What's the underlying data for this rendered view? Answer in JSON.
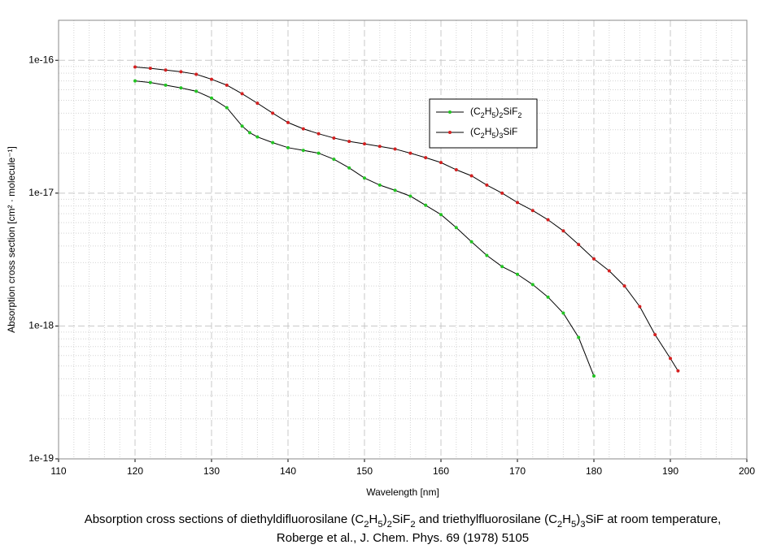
{
  "chart_data": {
    "type": "line",
    "x_label": "Wavelength [nm]",
    "y_label": "Absorption cross section [cm² · molecule⁻¹]",
    "caption_lines": [
      "Absorption cross sections of diethyldifluorosilane (C2H5)2SiF2 and triethylfluorosilane (C2H5)3SiF at room temperature,",
      "Roberge et al., J. Chem. Phys. 69 (1978) 5105"
    ],
    "xlim": [
      110,
      200
    ],
    "xticks": [
      110,
      120,
      130,
      140,
      150,
      160,
      170,
      180,
      190,
      200
    ],
    "ylim": [
      1e-19,
      2e-16
    ],
    "yticks": [
      1e-19,
      1e-18,
      1e-17,
      1e-16
    ],
    "y_scale": "log",
    "grid": true,
    "series": [
      {
        "name": "(C2H5)2SiF2",
        "color": "#22c422",
        "x": [
          120,
          122,
          124,
          126,
          128,
          130,
          132,
          134,
          135,
          136,
          138,
          140,
          142,
          144,
          146,
          148,
          150,
          152,
          154,
          156,
          158,
          160,
          162,
          164,
          166,
          168,
          170,
          172,
          174,
          176,
          178,
          180
        ],
        "values": [
          7e-17,
          6.8e-17,
          6.5e-17,
          6.2e-17,
          5.85e-17,
          5.2e-17,
          4.4e-17,
          3.2e-17,
          2.85e-17,
          2.65e-17,
          2.4e-17,
          2.2e-17,
          2.1e-17,
          2e-17,
          1.8e-17,
          1.55e-17,
          1.3e-17,
          1.15e-17,
          1.05e-17,
          9.5e-18,
          8.1e-18,
          6.9e-18,
          5.5e-18,
          4.3e-18,
          3.4e-18,
          2.8e-18,
          2.45e-18,
          2.05e-18,
          1.65e-18,
          1.25e-18,
          8.2e-19,
          4.2e-19
        ]
      },
      {
        "name": "(C2H5)3SiF",
        "color": "#d42020",
        "x": [
          120,
          122,
          124,
          126,
          128,
          130,
          132,
          134,
          136,
          138,
          140,
          142,
          144,
          146,
          148,
          150,
          152,
          154,
          156,
          158,
          160,
          162,
          164,
          166,
          168,
          170,
          172,
          174,
          176,
          178,
          180,
          182,
          184,
          186,
          188,
          190,
          191
        ],
        "values": [
          8.9e-17,
          8.7e-17,
          8.45e-17,
          8.2e-17,
          7.85e-17,
          7.2e-17,
          6.5e-17,
          5.6e-17,
          4.75e-17,
          4e-17,
          3.4e-17,
          3.05e-17,
          2.8e-17,
          2.6e-17,
          2.45e-17,
          2.35e-17,
          2.25e-17,
          2.15e-17,
          2e-17,
          1.85e-17,
          1.7e-17,
          1.5e-17,
          1.35e-17,
          1.15e-17,
          1e-17,
          8.5e-18,
          7.4e-18,
          6.3e-18,
          5.2e-18,
          4.1e-18,
          3.2e-18,
          2.6e-18,
          2e-18,
          1.4e-18,
          8.6e-19,
          5.7e-19,
          4.6e-19
        ]
      }
    ]
  }
}
